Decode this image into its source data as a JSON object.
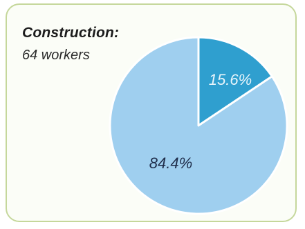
{
  "chart_data": {
    "type": "pie",
    "title": "Construction:",
    "subtitle": "64 workers",
    "slices": [
      {
        "label": "15.6%",
        "value": 15.6,
        "color": "#2f9fcf",
        "label_color": "#e9f5fb"
      },
      {
        "label": "84.4%",
        "value": 84.4,
        "color": "#9fcfef",
        "label_color": "#1f2d4a"
      }
    ]
  },
  "colors": {
    "frame_border": "#c5d79b",
    "slice_separator": "#ffffff"
  }
}
